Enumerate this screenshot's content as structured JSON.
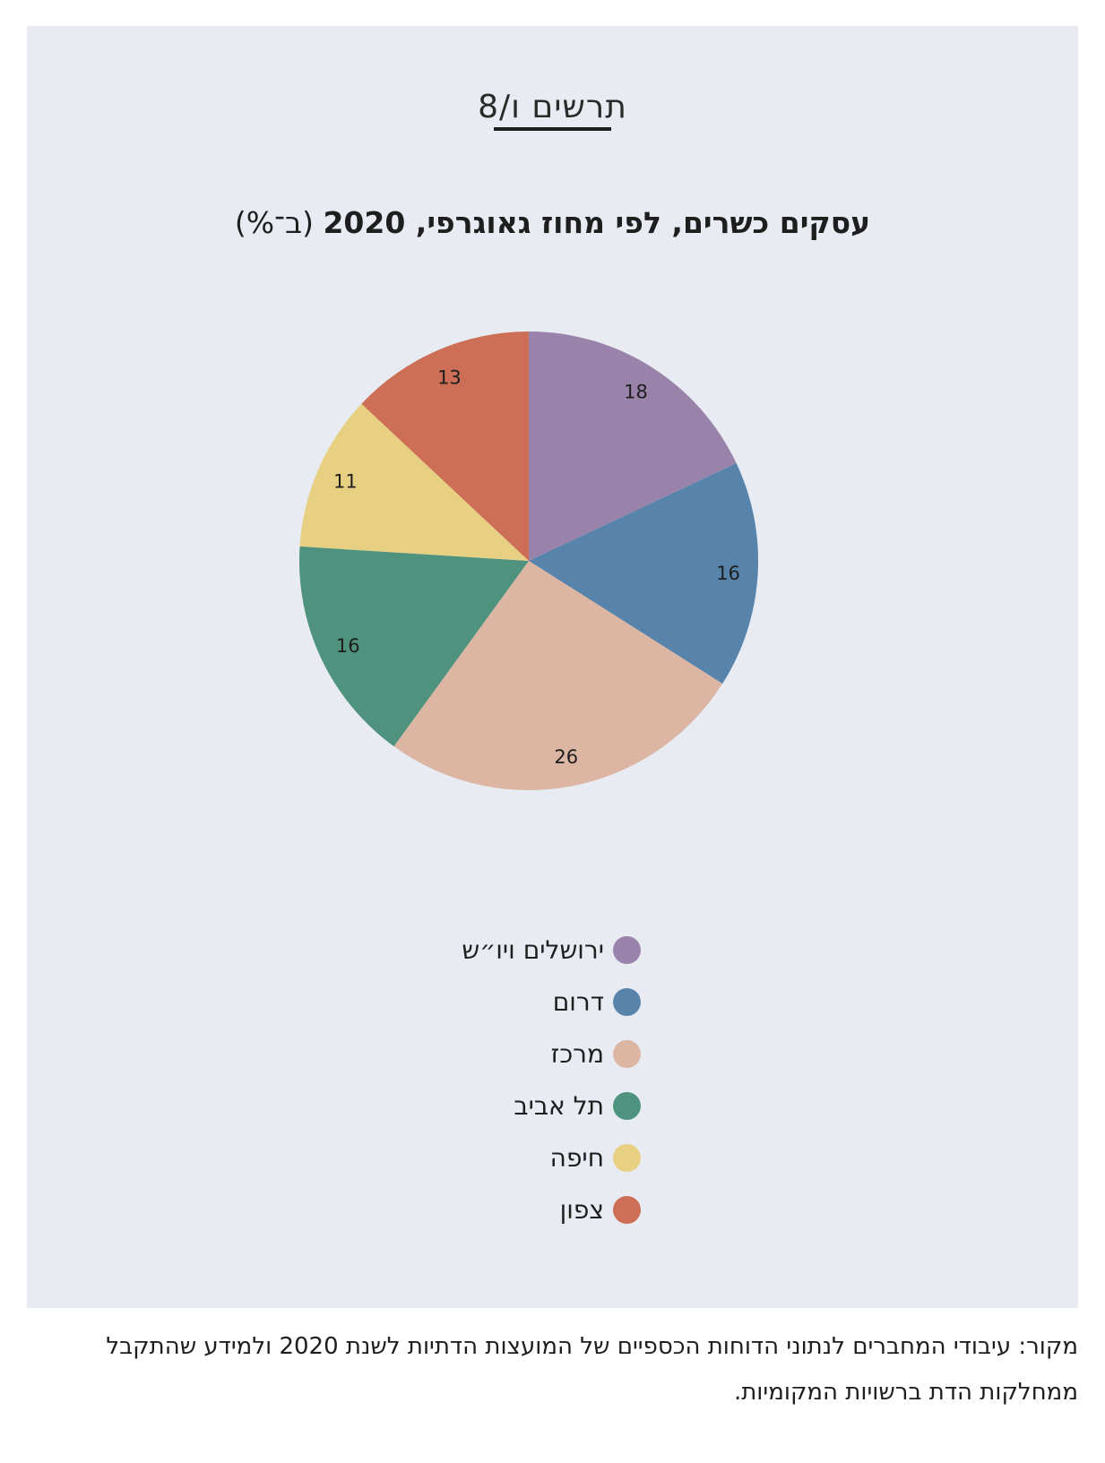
{
  "figure": {
    "label": "תרשים ו/8"
  },
  "chart_data": {
    "type": "pie",
    "title": "עסקים כשרים, לפי מחוז גאוגרפי, 2020",
    "title_unit": "(ב־%)",
    "categories": [
      "ירושלים ויו״ש",
      "דרום",
      "מרכז",
      "תל אביב",
      "חיפה",
      "צפון"
    ],
    "values": [
      18,
      16,
      26,
      16,
      11,
      13
    ],
    "colors": [
      "#9983aa",
      "#5884ab",
      "#dcb5a3",
      "#4f937f",
      "#e8d083",
      "#cd6e57"
    ],
    "legend_position": "bottom",
    "data_labels": [
      "18",
      "16",
      "26",
      "16",
      "11",
      "13"
    ]
  },
  "source": {
    "text": "מקור: עיבודי המחברים לנתוני הדוחות הכספיים של המועצות הדתיות לשנת 2020 ולמידע שהתקבל ממחלקות הדת ברשויות המקומיות."
  }
}
